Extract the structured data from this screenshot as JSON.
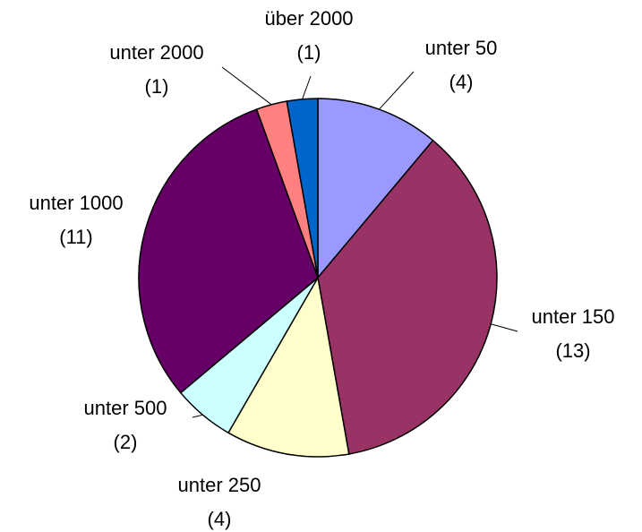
{
  "chart_data": {
    "type": "pie",
    "categories": [
      "unter 50",
      "unter 150",
      "unter 250",
      "unter 500",
      "unter 1000",
      "unter 2000",
      "über 2000"
    ],
    "values": [
      4,
      13,
      4,
      2,
      11,
      1,
      1
    ],
    "value_labels": [
      "(4)",
      "(13)",
      "(4)",
      "(2)",
      "(11)",
      "(1)",
      "(1)"
    ],
    "colors": [
      "#9999ff",
      "#993366",
      "#ffffcc",
      "#ccffff",
      "#660066",
      "#ff8080",
      "#0066cc"
    ]
  }
}
